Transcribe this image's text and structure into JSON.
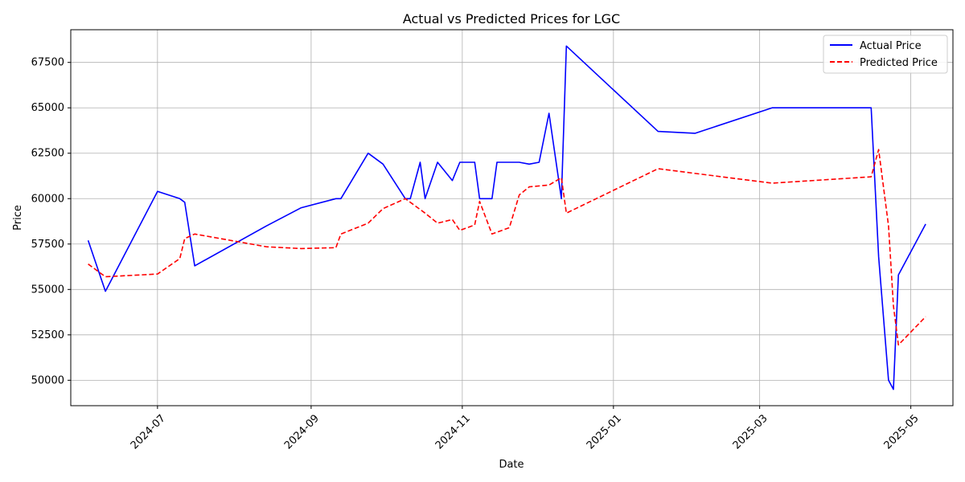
{
  "chart_data": {
    "type": "line",
    "title": "Actual vs Predicted Prices for LGC",
    "xlabel": "Date",
    "ylabel": "Price",
    "x_axis": "date",
    "xlim": [
      "2024-05-27",
      "2025-05-18"
    ],
    "ylim": [
      48600,
      69300
    ],
    "x_ticks": [
      {
        "date": "2024-07-01",
        "label": "2024-07"
      },
      {
        "date": "2024-09-01",
        "label": "2024-09"
      },
      {
        "date": "2024-11-01",
        "label": "2024-11"
      },
      {
        "date": "2025-01-01",
        "label": "2025-01"
      },
      {
        "date": "2025-03-01",
        "label": "2025-03"
      },
      {
        "date": "2025-05-01",
        "label": "2025-05"
      }
    ],
    "y_ticks": [
      50000,
      52500,
      55000,
      57500,
      60000,
      62500,
      65000,
      67500
    ],
    "grid": true,
    "legend_position": "top-right",
    "series": [
      {
        "name": "Actual Price",
        "color": "#0000ff",
        "style": "solid",
        "points": [
          [
            "2024-06-03",
            57700
          ],
          [
            "2024-06-10",
            54900
          ],
          [
            "2024-07-01",
            60400
          ],
          [
            "2024-07-10",
            60000
          ],
          [
            "2024-07-12",
            59800
          ],
          [
            "2024-07-16",
            56300
          ],
          [
            "2024-08-14",
            58500
          ],
          [
            "2024-08-28",
            59500
          ],
          [
            "2024-09-11",
            60000
          ],
          [
            "2024-09-13",
            60000
          ],
          [
            "2024-09-24",
            62500
          ],
          [
            "2024-09-30",
            61900
          ],
          [
            "2024-10-09",
            60000
          ],
          [
            "2024-10-11",
            60000
          ],
          [
            "2024-10-15",
            62000
          ],
          [
            "2024-10-17",
            60000
          ],
          [
            "2024-10-22",
            62000
          ],
          [
            "2024-10-28",
            61000
          ],
          [
            "2024-10-31",
            62000
          ],
          [
            "2024-11-06",
            62000
          ],
          [
            "2024-11-08",
            60000
          ],
          [
            "2024-11-13",
            60000
          ],
          [
            "2024-11-15",
            62000
          ],
          [
            "2024-11-24",
            62000
          ],
          [
            "2024-11-28",
            61900
          ],
          [
            "2024-12-02",
            62000
          ],
          [
            "2024-12-06",
            64700
          ],
          [
            "2024-12-11",
            60000
          ],
          [
            "2024-12-13",
            68400
          ],
          [
            "2025-01-19",
            63700
          ],
          [
            "2025-02-03",
            63600
          ],
          [
            "2025-03-06",
            65000
          ],
          [
            "2025-04-15",
            65000
          ],
          [
            "2025-04-18",
            56800
          ],
          [
            "2025-04-22",
            50000
          ],
          [
            "2025-04-24",
            49500
          ],
          [
            "2025-04-26",
            55800
          ],
          [
            "2025-05-07",
            58600
          ]
        ]
      },
      {
        "name": "Predicted Price",
        "color": "#ff0000",
        "style": "dashed",
        "points": [
          [
            "2024-06-03",
            56400
          ],
          [
            "2024-06-10",
            55700
          ],
          [
            "2024-07-01",
            55850
          ],
          [
            "2024-07-10",
            56700
          ],
          [
            "2024-07-12",
            57800
          ],
          [
            "2024-07-16",
            58050
          ],
          [
            "2024-08-14",
            57350
          ],
          [
            "2024-08-28",
            57250
          ],
          [
            "2024-09-11",
            57300
          ],
          [
            "2024-09-13",
            58050
          ],
          [
            "2024-09-24",
            58650
          ],
          [
            "2024-09-30",
            59450
          ],
          [
            "2024-10-09",
            60000
          ],
          [
            "2024-10-11",
            59800
          ],
          [
            "2024-10-15",
            59400
          ],
          [
            "2024-10-17",
            59200
          ],
          [
            "2024-10-22",
            58650
          ],
          [
            "2024-10-28",
            58850
          ],
          [
            "2024-10-31",
            58250
          ],
          [
            "2024-11-06",
            58550
          ],
          [
            "2024-11-08",
            59850
          ],
          [
            "2024-11-13",
            58050
          ],
          [
            "2024-11-20",
            58400
          ],
          [
            "2024-11-24",
            60200
          ],
          [
            "2024-11-28",
            60650
          ],
          [
            "2024-12-06",
            60750
          ],
          [
            "2024-12-11",
            61150
          ],
          [
            "2024-12-13",
            59200
          ],
          [
            "2025-01-19",
            61650
          ],
          [
            "2025-03-06",
            60850
          ],
          [
            "2025-04-15",
            61200
          ],
          [
            "2025-04-18",
            62700
          ],
          [
            "2025-04-22",
            58500
          ],
          [
            "2025-04-24",
            54100
          ],
          [
            "2025-04-26",
            51950
          ],
          [
            "2025-05-07",
            53500
          ]
        ]
      }
    ]
  }
}
